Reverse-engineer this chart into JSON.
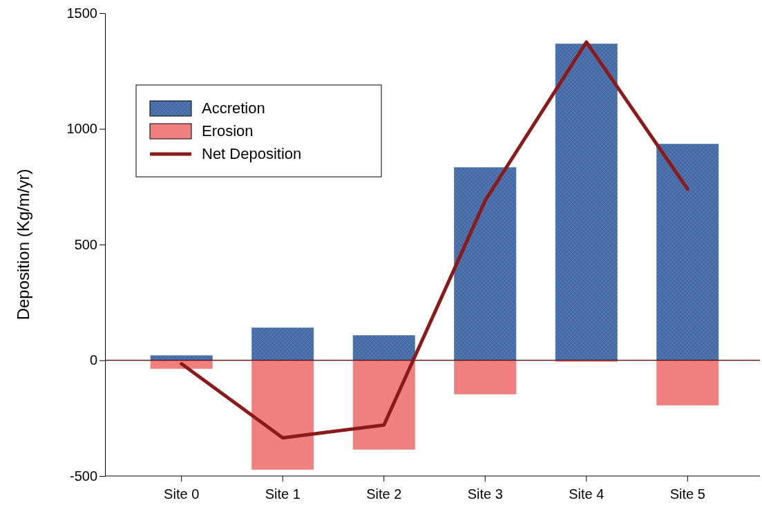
{
  "chart_data": {
    "type": "bar",
    "ylabel": "Deposition (Kg/m/yr)",
    "categories": [
      "Site 0",
      "Site 1",
      "Site 2",
      "Site 3",
      "Site 4",
      "Site 5"
    ],
    "stacked": true,
    "series": [
      {
        "name": "Accretion",
        "color": "#4a6fa8",
        "values": [
          20,
          140,
          107,
          833,
          1367,
          934
        ]
      },
      {
        "name": "Erosion",
        "color": "#f08080",
        "values": [
          -36,
          -472,
          -385,
          -146,
          -5,
          -194
        ]
      },
      {
        "name": "Net Deposition",
        "type": "line",
        "color": "#8b1a1a",
        "values": [
          -15,
          -335,
          -280,
          690,
          1375,
          740
        ]
      }
    ],
    "ylim": [
      -500,
      1500
    ],
    "yticks": [
      -500,
      0,
      500,
      1000,
      1500
    ],
    "ref_lines": [
      {
        "axis": "y",
        "value": 0,
        "color": "#5a1a1a"
      }
    ],
    "legend": "top left"
  }
}
